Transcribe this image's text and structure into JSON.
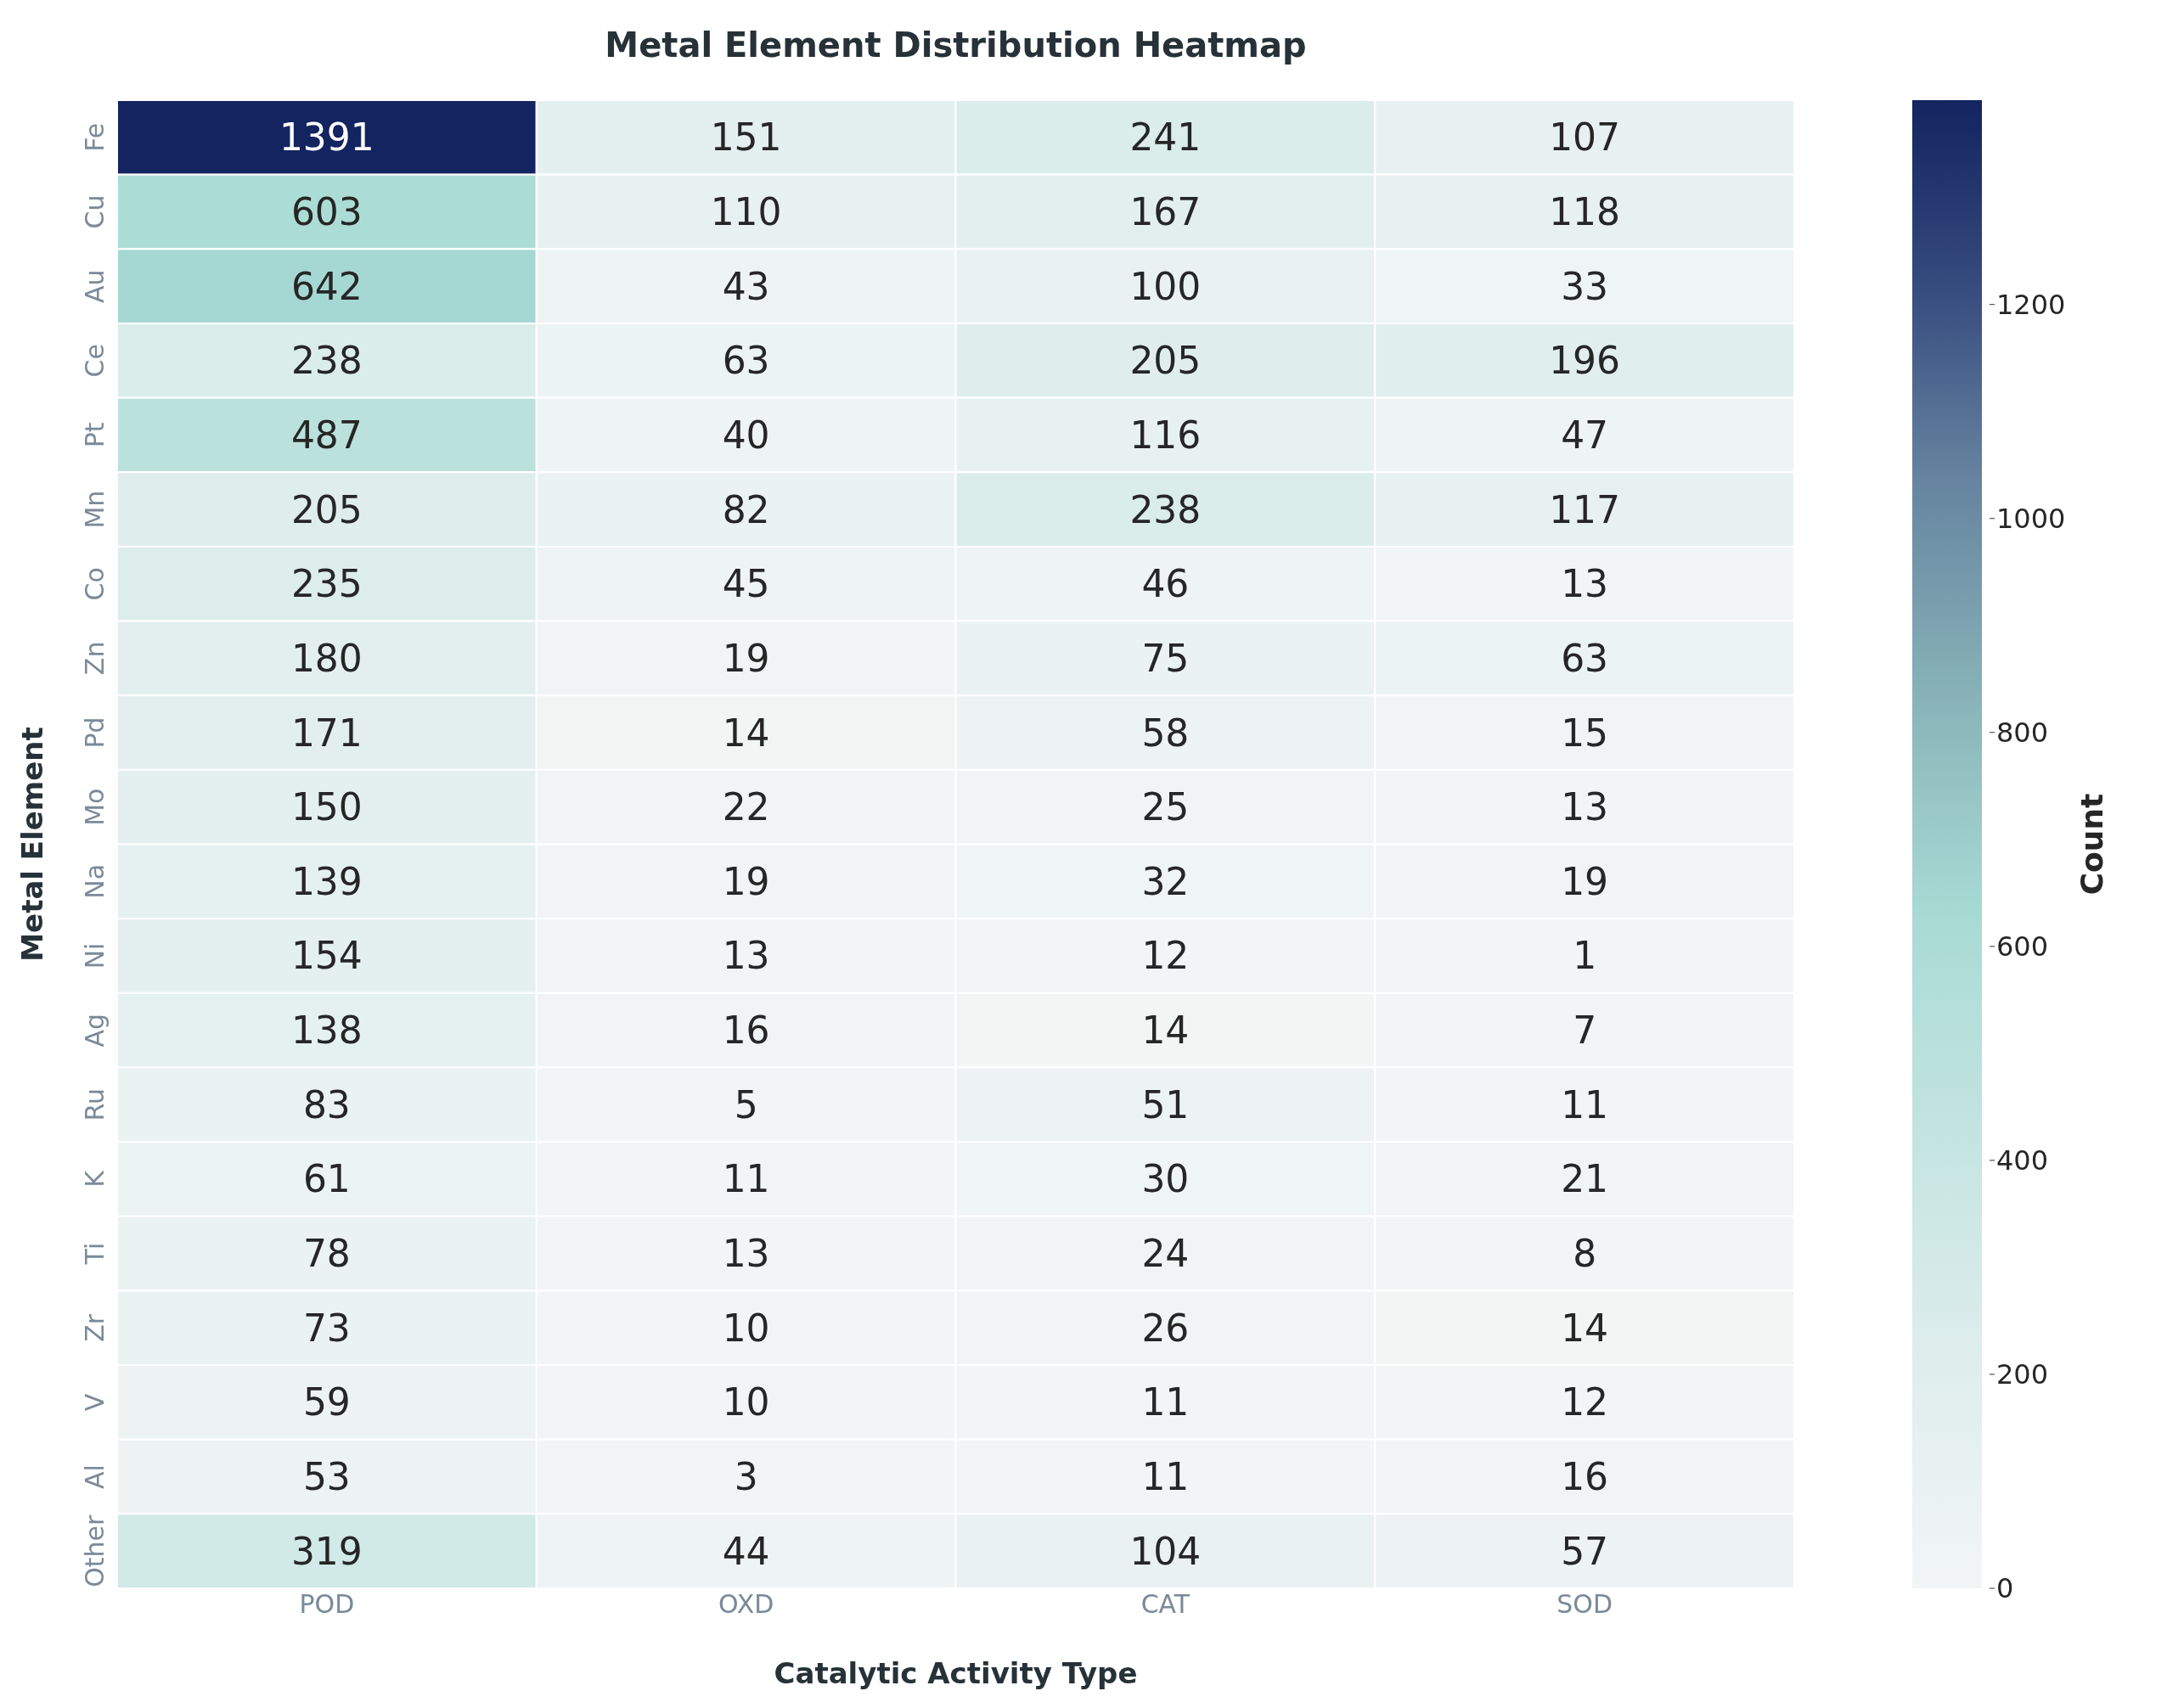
{
  "chart_data": {
    "type": "heatmap",
    "title": "Metal Element Distribution Heatmap",
    "xlabel": "Catalytic Activity Type",
    "ylabel": "Metal Element",
    "clabel": "Count",
    "categories": [
      "POD",
      "OXD",
      "CAT",
      "SOD"
    ],
    "y_categories": [
      "Fe",
      "Cu",
      "Au",
      "Ce",
      "Pt",
      "Mn",
      "Co",
      "Zn",
      "Pd",
      "Mo",
      "Na",
      "Ni",
      "Ag",
      "Ru",
      "K",
      "Ti",
      "Zr",
      "V",
      "Al",
      "Other"
    ],
    "cells": [
      [
        1391,
        151,
        241,
        107
      ],
      [
        603,
        110,
        167,
        118
      ],
      [
        642,
        43,
        100,
        33
      ],
      [
        238,
        63,
        205,
        196
      ],
      [
        487,
        40,
        116,
        47
      ],
      [
        205,
        82,
        238,
        117
      ],
      [
        235,
        45,
        46,
        13
      ],
      [
        180,
        19,
        75,
        63
      ],
      [
        171,
        14,
        58,
        15
      ],
      [
        150,
        22,
        25,
        13
      ],
      [
        139,
        19,
        32,
        19
      ],
      [
        154,
        13,
        12,
        1
      ],
      [
        138,
        16,
        14,
        7
      ],
      [
        83,
        5,
        51,
        11
      ],
      [
        61,
        11,
        30,
        21
      ],
      [
        78,
        13,
        24,
        8
      ],
      [
        73,
        10,
        26,
        14
      ],
      [
        59,
        10,
        11,
        12
      ],
      [
        53,
        3,
        11,
        16
      ],
      [
        319,
        44,
        104,
        57
      ]
    ],
    "clim": [
      0,
      1391
    ],
    "cticks": [
      0,
      200,
      400,
      600,
      800,
      1000,
      1200
    ],
    "data_labels": true
  }
}
